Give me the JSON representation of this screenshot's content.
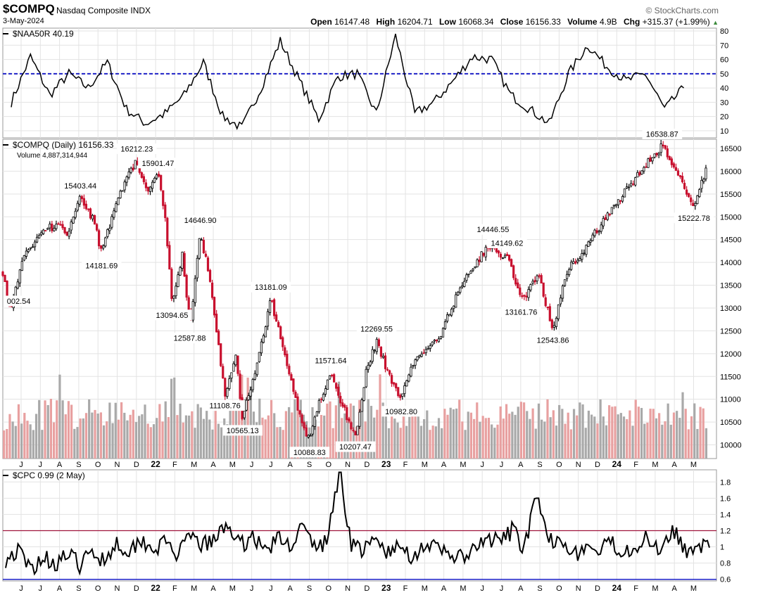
{
  "header": {
    "symbol": "$COMPQ",
    "name": "Nasdaq Composite INDX",
    "date": "3-May-2024",
    "watermark": "© StockCharts.com",
    "open_label": "Open",
    "open": "16147.48",
    "high_label": "High",
    "high": "16204.71",
    "low_label": "Low",
    "low": "16068.34",
    "close_label": "Close",
    "close": "16156.33",
    "volume_label": "Volume",
    "volume": "4.9B",
    "chg_label": "Chg",
    "chg": "+315.37 (+1.99%)"
  },
  "colors": {
    "up": "#000000",
    "down": "#c8102e",
    "vol_up": "#a9a9a9",
    "vol_down": "#e8a0a0",
    "ref_blue": "#1e22c8",
    "ref_red": "#a0143c",
    "grid": "#e3e3e3"
  },
  "x_axis_labels": [
    "J",
    "J",
    "A",
    "S",
    "O",
    "N",
    "D",
    "22",
    "F",
    "M",
    "A",
    "M",
    "J",
    "J",
    "A",
    "S",
    "O",
    "N",
    "D",
    "23",
    "F",
    "M",
    "A",
    "M",
    "J",
    "J",
    "A",
    "S",
    "O",
    "N",
    "D",
    "24",
    "F",
    "M",
    "A",
    "M"
  ],
  "chart_data": [
    {
      "type": "line",
      "title": "$NAA50R 40.19",
      "ylim": [
        5,
        82
      ],
      "yticks": [
        10,
        20,
        30,
        40,
        50,
        60,
        70,
        80
      ],
      "reference_line": 50,
      "x": [
        "2021-06",
        "2021-07",
        "2021-08",
        "2021-09",
        "2021-10",
        "2021-11",
        "2021-12",
        "2022-01",
        "2022-02",
        "2022-03",
        "2022-04",
        "2022-05",
        "2022-06",
        "2022-07",
        "2022-08",
        "2022-09",
        "2022-10",
        "2022-11",
        "2022-12",
        "2023-01",
        "2023-02",
        "2023-03",
        "2023-04",
        "2023-05",
        "2023-06",
        "2023-07",
        "2023-08",
        "2023-09",
        "2023-10",
        "2023-11",
        "2023-12",
        "2024-01",
        "2024-02",
        "2024-03",
        "2024-04",
        "2024-05"
      ],
      "values": [
        30,
        62,
        35,
        50,
        40,
        58,
        25,
        15,
        22,
        35,
        58,
        20,
        12,
        40,
        73,
        45,
        18,
        48,
        50,
        22,
        77,
        22,
        30,
        45,
        62,
        60,
        35,
        25,
        15,
        50,
        70,
        55,
        45,
        50,
        25,
        40
      ]
    },
    {
      "type": "line",
      "title": "$COMPQ (Daily) 16156.33",
      "volume_label": "Volume 4,887,314,944",
      "ylim": [
        9700,
        16700
      ],
      "yticks": [
        10000,
        10500,
        11000,
        11500,
        12000,
        12500,
        13000,
        13500,
        14000,
        14500,
        15000,
        15500,
        16000,
        16500
      ],
      "price_path": [
        [
          0,
          13800
        ],
        [
          2,
          13002.54
        ],
        [
          6,
          14100
        ],
        [
          12,
          14700
        ],
        [
          16,
          14850
        ],
        [
          18,
          14600
        ],
        [
          22,
          15403.44
        ],
        [
          26,
          14900
        ],
        [
          28,
          14181.69
        ],
        [
          32,
          15300
        ],
        [
          36,
          16000
        ],
        [
          38,
          16212.23
        ],
        [
          41,
          15600
        ],
        [
          44,
          15901.47
        ],
        [
          46,
          15100
        ],
        [
          48,
          13094.65
        ],
        [
          51,
          14200
        ],
        [
          53,
          12587.88
        ],
        [
          56,
          14646.9
        ],
        [
          59,
          13500
        ],
        [
          61,
          12300
        ],
        [
          63,
          11108.76
        ],
        [
          66,
          12000
        ],
        [
          68,
          10565.13
        ],
        [
          72,
          11800
        ],
        [
          76,
          13181.09
        ],
        [
          80,
          12000
        ],
        [
          84,
          10700
        ],
        [
          87,
          10088.83
        ],
        [
          90,
          11000
        ],
        [
          93,
          11571.64
        ],
        [
          96,
          10900
        ],
        [
          100,
          10207.47
        ],
        [
          103,
          11600
        ],
        [
          106,
          12269.55
        ],
        [
          110,
          11400
        ],
        [
          113,
          10982.8
        ],
        [
          116,
          11800
        ],
        [
          120,
          12100
        ],
        [
          124,
          12400
        ],
        [
          130,
          13500
        ],
        [
          134,
          14000
        ],
        [
          139,
          14446.55
        ],
        [
          141,
          14100
        ],
        [
          143,
          14149.62
        ],
        [
          147,
          13161.76
        ],
        [
          152,
          13700
        ],
        [
          156,
          12543.86
        ],
        [
          160,
          13800
        ],
        [
          166,
          14400
        ],
        [
          172,
          15100
        ],
        [
          177,
          15600
        ],
        [
          182,
          16100
        ],
        [
          187,
          16538.87
        ],
        [
          191,
          16000
        ],
        [
          196,
          15222.78
        ],
        [
          200,
          16156.33
        ]
      ],
      "annotations": [
        {
          "value": "15403.44"
        },
        {
          "value": "14181.69"
        },
        {
          "value": "16212.23"
        },
        {
          "value": "15901.47"
        },
        {
          "value": "13094.65"
        },
        {
          "value": "12587.88"
        },
        {
          "value": "14646.90"
        },
        {
          "value": "11108.76"
        },
        {
          "value": "10565.13"
        },
        {
          "value": "13181.09"
        },
        {
          "value": "10088.83"
        },
        {
          "value": "11571.64"
        },
        {
          "value": "10207.47"
        },
        {
          "value": "12269.55"
        },
        {
          "value": "10982.80"
        },
        {
          "value": "14446.55"
        },
        {
          "value": "14149.62"
        },
        {
          "value": "13161.76"
        },
        {
          "value": "12543.86"
        },
        {
          "value": "16538.87"
        },
        {
          "value": "15222.78"
        },
        {
          "value": "002.54"
        }
      ]
    },
    {
      "type": "line",
      "title": "$CPC 0.99 (2 May)",
      "ylim": [
        0.58,
        1.95
      ],
      "yticks": [
        0.6,
        0.8,
        1.0,
        1.2,
        1.4,
        1.6,
        1.8
      ],
      "reference_lines": [
        1.2,
        0.6
      ],
      "values": [
        0.85,
        0.95,
        0.72,
        0.88,
        0.8,
        0.9,
        0.78,
        0.92,
        0.85,
        1.05,
        0.95,
        1.1,
        0.98,
        1.05,
        0.9,
        1.12,
        1.02,
        1.08,
        1.3,
        1.0,
        1.15,
        0.95,
        1.1,
        1.02,
        1.25,
        1.0,
        1.05,
        1.92,
        1.05,
        0.95,
        1.08,
        0.92,
        1.0,
        0.88,
        1.05,
        0.95,
        0.92,
        0.85,
        0.95,
        1.1,
        1.05,
        1.2,
        1.0,
        1.6,
        1.05,
        1.15,
        0.9,
        1.0,
        0.92,
        1.05,
        0.95,
        1.02,
        1.1,
        0.98,
        1.25,
        0.95,
        1.05,
        0.99
      ]
    }
  ]
}
